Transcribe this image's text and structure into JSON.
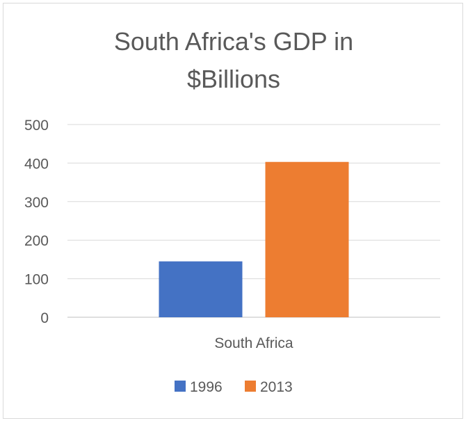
{
  "chart_data": {
    "type": "bar",
    "title_lines": [
      "South Africa's GDP in",
      "$Billions"
    ],
    "xlabel": "",
    "ylabel": "",
    "categories": [
      "South Africa"
    ],
    "series": [
      {
        "name": "1996",
        "values": [
          145
        ],
        "color": "#4472C4"
      },
      {
        "name": "2013",
        "values": [
          403
        ],
        "color": "#ED7D31"
      }
    ],
    "ylim": [
      0,
      500
    ],
    "yticks": [
      "0",
      "100",
      "200",
      "300",
      "400",
      "500"
    ],
    "grid": true,
    "legend_position": "bottom"
  }
}
